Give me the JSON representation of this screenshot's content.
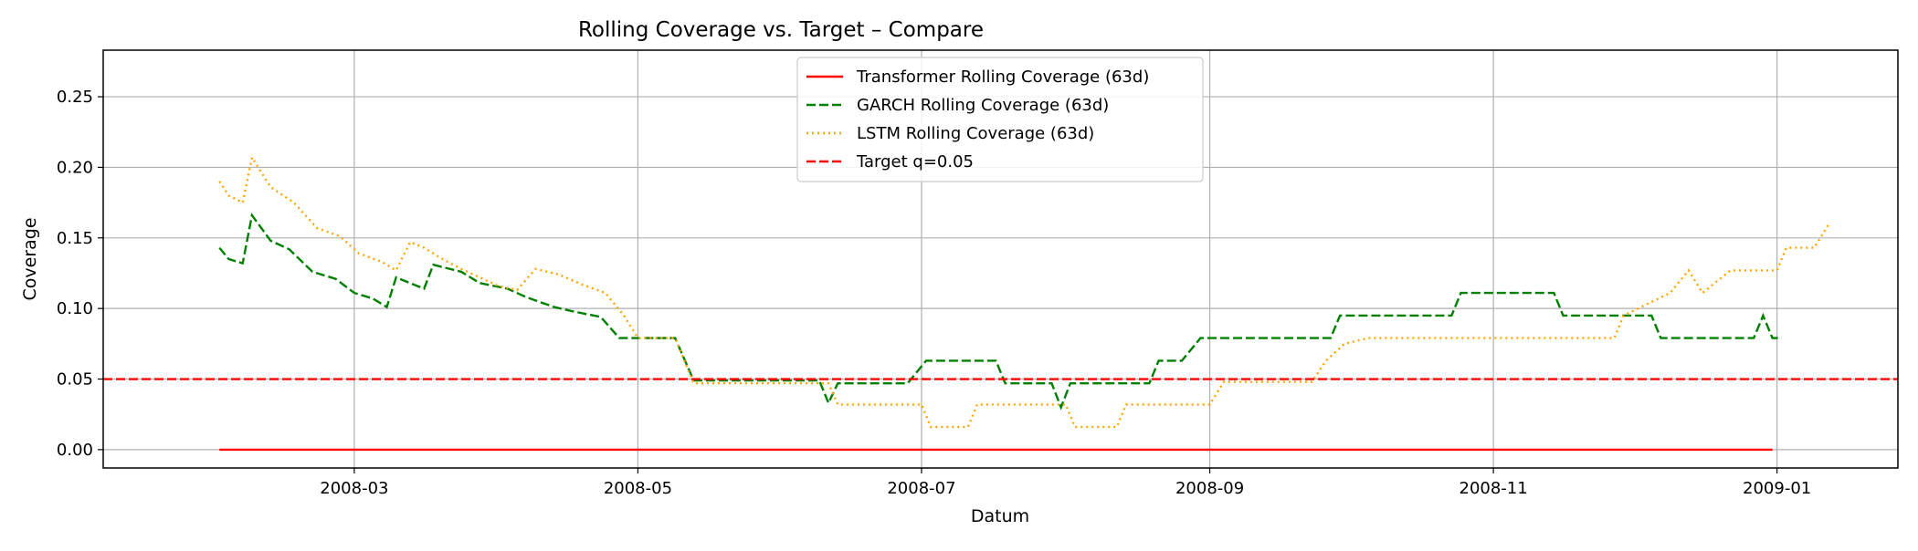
{
  "chart_data": {
    "type": "line",
    "title": "Rolling Coverage vs. Target – Compare",
    "xlabel": "Datum",
    "ylabel": "Coverage",
    "xlim": [
      "2008-01-07",
      "2009-01-27"
    ],
    "ylim": [
      -0.013,
      0.283
    ],
    "x_ticks": [
      "2008-03-01",
      "2008-05-01",
      "2008-07-01",
      "2008-09-01",
      "2008-11-01",
      "2009-01-01"
    ],
    "x_tick_labels": [
      "2008-03",
      "2008-05",
      "2008-07",
      "2008-09",
      "2008-11",
      "2009-01"
    ],
    "y_ticks": [
      0.0,
      0.05,
      0.1,
      0.15,
      0.2,
      0.25
    ],
    "y_tick_labels": [
      "0.00",
      "0.05",
      "0.10",
      "0.15",
      "0.20",
      "0.25"
    ],
    "grid": true,
    "legend_position": "top-center",
    "series": [
      {
        "name": "Transformer Rolling Coverage (63d)",
        "color": "#ff0000",
        "dash": "solid",
        "points": [
          [
            "2008-02-01",
            0.0
          ],
          [
            "2008-12-31",
            0.0
          ]
        ]
      },
      {
        "name": "GARCH Rolling Coverage (63d)",
        "color": "#008000",
        "dash": "dashed",
        "points": [
          [
            "2008-02-01",
            0.143
          ],
          [
            "2008-02-03",
            0.135
          ],
          [
            "2008-02-06",
            0.132
          ],
          [
            "2008-02-08",
            0.166
          ],
          [
            "2008-02-12",
            0.148
          ],
          [
            "2008-02-16",
            0.142
          ],
          [
            "2008-02-21",
            0.126
          ],
          [
            "2008-02-26",
            0.121
          ],
          [
            "2008-03-01",
            0.111
          ],
          [
            "2008-03-05",
            0.107
          ],
          [
            "2008-03-08",
            0.101
          ],
          [
            "2008-03-10",
            0.122
          ],
          [
            "2008-03-13",
            0.118
          ],
          [
            "2008-03-16",
            0.114
          ],
          [
            "2008-03-18",
            0.131
          ],
          [
            "2008-03-24",
            0.126
          ],
          [
            "2008-03-28",
            0.118
          ],
          [
            "2008-04-03",
            0.114
          ],
          [
            "2008-04-07",
            0.108
          ],
          [
            "2008-04-13",
            0.101
          ],
          [
            "2008-04-17",
            0.098
          ],
          [
            "2008-04-23",
            0.094
          ],
          [
            "2008-04-27",
            0.079
          ],
          [
            "2008-05-09",
            0.079
          ],
          [
            "2008-05-13",
            0.049
          ],
          [
            "2008-06-09",
            0.049
          ],
          [
            "2008-06-11",
            0.033
          ],
          [
            "2008-06-13",
            0.047
          ],
          [
            "2008-06-28",
            0.047
          ],
          [
            "2008-07-02",
            0.063
          ],
          [
            "2008-07-17",
            0.063
          ],
          [
            "2008-07-19",
            0.047
          ],
          [
            "2008-07-29",
            0.047
          ],
          [
            "2008-07-31",
            0.03
          ],
          [
            "2008-08-02",
            0.047
          ],
          [
            "2008-08-19",
            0.047
          ],
          [
            "2008-08-21",
            0.063
          ],
          [
            "2008-08-26",
            0.063
          ],
          [
            "2008-08-30",
            0.079
          ],
          [
            "2008-09-27",
            0.079
          ],
          [
            "2008-09-29",
            0.095
          ],
          [
            "2008-10-23",
            0.095
          ],
          [
            "2008-10-25",
            0.111
          ],
          [
            "2008-11-14",
            0.111
          ],
          [
            "2008-11-16",
            0.095
          ],
          [
            "2008-12-05",
            0.095
          ],
          [
            "2008-12-07",
            0.079
          ],
          [
            "2008-12-27",
            0.079
          ],
          [
            "2008-12-29",
            0.095
          ],
          [
            "2008-12-31",
            0.079
          ],
          [
            "2009-01-02",
            0.079
          ]
        ]
      },
      {
        "name": "LSTM Rolling Coverage (63d)",
        "color": "#ffa500",
        "dash": "dotted",
        "points": [
          [
            "2008-02-01",
            0.19
          ],
          [
            "2008-02-03",
            0.18
          ],
          [
            "2008-02-06",
            0.175
          ],
          [
            "2008-02-08",
            0.207
          ],
          [
            "2008-02-12",
            0.186
          ],
          [
            "2008-02-17",
            0.175
          ],
          [
            "2008-02-22",
            0.157
          ],
          [
            "2008-02-27",
            0.151
          ],
          [
            "2008-03-02",
            0.139
          ],
          [
            "2008-03-07",
            0.133
          ],
          [
            "2008-03-10",
            0.127
          ],
          [
            "2008-03-13",
            0.147
          ],
          [
            "2008-03-16",
            0.143
          ],
          [
            "2008-03-20",
            0.135
          ],
          [
            "2008-03-24",
            0.128
          ],
          [
            "2008-03-28",
            0.122
          ],
          [
            "2008-04-01",
            0.116
          ],
          [
            "2008-04-05",
            0.113
          ],
          [
            "2008-04-09",
            0.128
          ],
          [
            "2008-04-14",
            0.124
          ],
          [
            "2008-04-19",
            0.117
          ],
          [
            "2008-04-24",
            0.111
          ],
          [
            "2008-04-28",
            0.095
          ],
          [
            "2008-05-01",
            0.079
          ],
          [
            "2008-05-09",
            0.079
          ],
          [
            "2008-05-13",
            0.047
          ],
          [
            "2008-06-11",
            0.047
          ],
          [
            "2008-06-13",
            0.032
          ],
          [
            "2008-07-01",
            0.032
          ],
          [
            "2008-07-03",
            0.016
          ],
          [
            "2008-07-11",
            0.016
          ],
          [
            "2008-07-13",
            0.032
          ],
          [
            "2008-08-01",
            0.032
          ],
          [
            "2008-08-03",
            0.016
          ],
          [
            "2008-08-12",
            0.016
          ],
          [
            "2008-08-14",
            0.032
          ],
          [
            "2008-09-01",
            0.032
          ],
          [
            "2008-09-04",
            0.048
          ],
          [
            "2008-09-23",
            0.048
          ],
          [
            "2008-09-26",
            0.063
          ],
          [
            "2008-09-30",
            0.075
          ],
          [
            "2008-10-05",
            0.079
          ],
          [
            "2008-11-27",
            0.079
          ],
          [
            "2008-11-29",
            0.095
          ],
          [
            "2008-12-09",
            0.111
          ],
          [
            "2008-12-13",
            0.127
          ],
          [
            "2008-12-16",
            0.111
          ],
          [
            "2008-12-22",
            0.127
          ],
          [
            "2009-01-01",
            0.127
          ],
          [
            "2009-01-03",
            0.143
          ],
          [
            "2009-01-09",
            0.143
          ],
          [
            "2009-01-12",
            0.159
          ]
        ]
      },
      {
        "name": "Target q=0.05",
        "color": "#ff0000",
        "dash": "dashed",
        "hline": 0.05
      }
    ]
  }
}
